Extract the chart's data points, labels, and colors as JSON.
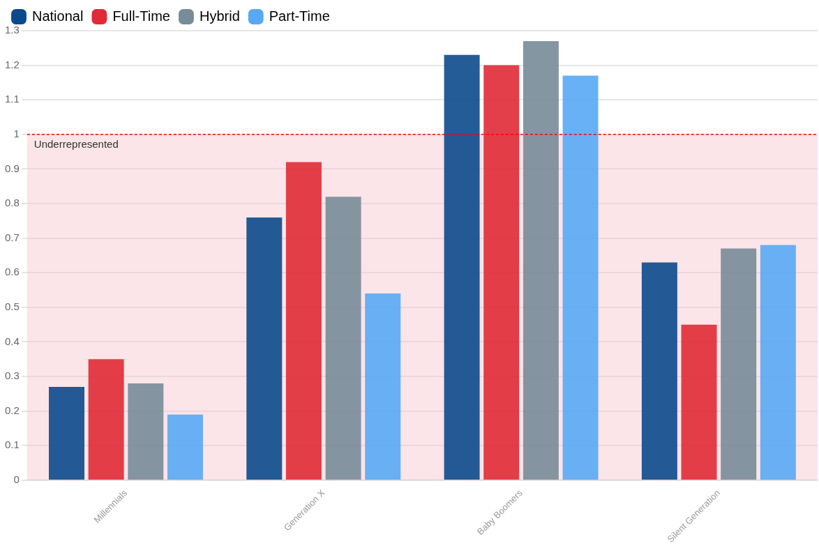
{
  "chart_data": {
    "type": "bar",
    "categories": [
      "Millennials",
      "Generation X",
      "Baby Boomers",
      "Silent Generation"
    ],
    "series": [
      {
        "name": "National",
        "color": "#0b4a8c",
        "values": [
          0.27,
          0.76,
          1.23,
          0.63
        ]
      },
      {
        "name": "Full-Time",
        "color": "#e02a36",
        "values": [
          0.35,
          0.92,
          1.2,
          0.45
        ]
      },
      {
        "name": "Hybrid",
        "color": "#788b99",
        "values": [
          0.28,
          0.82,
          1.27,
          0.67
        ]
      },
      {
        "name": "Part-Time",
        "color": "#58a8f5",
        "values": [
          0.19,
          0.54,
          1.17,
          0.68
        ]
      }
    ],
    "ylim": [
      0,
      1.3
    ],
    "yticks": [
      0,
      0.1,
      0.2,
      0.3,
      0.4,
      0.5,
      0.6,
      0.7,
      0.8,
      0.9,
      1,
      1.1,
      1.2,
      1.3
    ],
    "grid": "y",
    "legend": "top left",
    "bands": [
      {
        "axis": "y",
        "from": 0,
        "to": 1,
        "label": "Underrepresented",
        "color": "#f7c6cb"
      }
    ],
    "ref_lines": [
      {
        "axis": "y",
        "value": 1,
        "color": "#ff0000",
        "line_style": "dashed"
      }
    ]
  }
}
